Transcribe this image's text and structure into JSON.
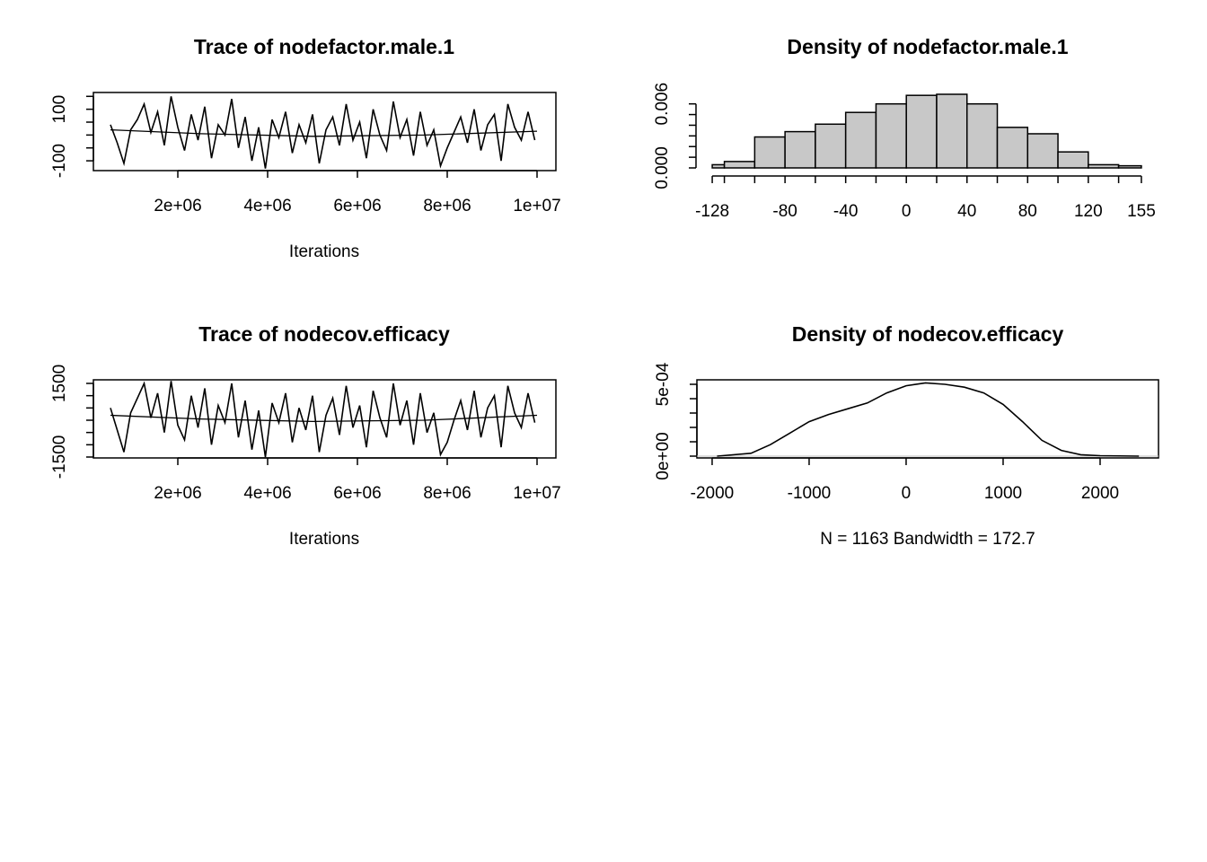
{
  "chart_data": [
    {
      "type": "line",
      "title": "Trace of nodefactor.male.1",
      "xlabel": "Iterations",
      "xlim": [
        120000,
        10420000
      ],
      "ylim": [
        -138,
        165
      ],
      "xticks": [
        {
          "value": 2000000,
          "label": "2e+06"
        },
        {
          "value": 4000000,
          "label": "4e+06"
        },
        {
          "value": 6000000,
          "label": "6e+06"
        },
        {
          "value": 8000000,
          "label": "8e+06"
        },
        {
          "value": 10000000,
          "label": "1e+07"
        }
      ],
      "yticks": [
        -100,
        {
          "value": -50,
          "label": null
        },
        {
          "value": 0,
          "label": null
        },
        {
          "value": 50,
          "label": null
        },
        100,
        {
          "value": 150,
          "label": null
        }
      ],
      "series": [
        {
          "color": "#000000",
          "x": [
            500000,
            650000,
            800000,
            950000,
            1100000,
            1250000,
            1400000,
            1550000,
            1700000,
            1850000,
            2000000,
            2150000,
            2300000,
            2450000,
            2600000,
            2750000,
            2900000,
            3050000,
            3200000,
            3350000,
            3500000,
            3650000,
            3800000,
            3950000,
            4100000,
            4250000,
            4400000,
            4550000,
            4700000,
            4850000,
            5000000,
            5150000,
            5300000,
            5450000,
            5600000,
            5750000,
            5900000,
            6050000,
            6200000,
            6350000,
            6500000,
            6650000,
            6800000,
            6950000,
            7100000,
            7250000,
            7400000,
            7550000,
            7700000,
            7850000,
            8000000,
            8150000,
            8300000,
            8450000,
            8600000,
            8750000,
            8900000,
            9050000,
            9200000,
            9350000,
            9500000,
            9650000,
            9800000,
            9950000
          ],
          "values": [
            40,
            -30,
            -110,
            20,
            60,
            120,
            10,
            90,
            -40,
            150,
            30,
            -60,
            80,
            -20,
            110,
            -90,
            40,
            0,
            140,
            -50,
            70,
            -100,
            30,
            -130,
            60,
            -10,
            90,
            -70,
            40,
            -30,
            80,
            -110,
            20,
            70,
            -40,
            120,
            -20,
            50,
            -90,
            100,
            0,
            -60,
            130,
            -10,
            60,
            -80,
            90,
            -40,
            20,
            -120,
            -50,
            10,
            70,
            -30,
            100,
            -60,
            40,
            80,
            -100,
            120,
            30,
            -20,
            90,
            -20
          ]
        },
        {
          "color": "#000000",
          "x": [
            500000,
            2500000,
            5000000,
            7500000,
            10000000
          ],
          "values": [
            20,
            5,
            -5,
            0,
            15
          ]
        }
      ]
    },
    {
      "type": "histogram",
      "title": "Density of nodefactor.male.1",
      "color": "#c8c8c8",
      "xlim": [
        -139.3,
        166.3
      ],
      "ylim": [
        0,
        0.0069
      ],
      "bins": [
        -128,
        -120,
        -100,
        -80,
        -60,
        -40,
        -20,
        0,
        20,
        40,
        60,
        80,
        100,
        120,
        140,
        155
      ],
      "values": [
        0.0003,
        0.0006,
        0.0029,
        0.0034,
        0.0041,
        0.0052,
        0.006,
        0.0068,
        0.0069,
        0.006,
        0.0038,
        0.0032,
        0.0015,
        0.0003,
        0.0002
      ],
      "xticks": [
        -128,
        {
          "value": -120,
          "label": null
        },
        {
          "value": -100,
          "label": null
        },
        -80,
        {
          "value": -60,
          "label": null
        },
        -40,
        {
          "value": -20,
          "label": null
        },
        0,
        {
          "value": 20,
          "label": null
        },
        40,
        {
          "value": 60,
          "label": null
        },
        80,
        {
          "value": 100,
          "label": null
        },
        120,
        {
          "value": 140,
          "label": null
        },
        155
      ],
      "yticks": [
        {
          "value": 0,
          "label": "0.000"
        },
        {
          "value": 0.001,
          "label": null
        },
        {
          "value": 0.002,
          "label": null
        },
        {
          "value": 0.003,
          "label": null
        },
        {
          "value": 0.004,
          "label": null
        },
        {
          "value": 0.005,
          "label": null
        },
        {
          "value": 0.006,
          "label": "0.006"
        }
      ]
    },
    {
      "type": "line",
      "title": "Trace of nodecov.efficacy",
      "xlabel": "Iterations",
      "xlim": [
        120000,
        10420000
      ],
      "ylim": [
        -1537,
        1646
      ],
      "xticks": [
        {
          "value": 2000000,
          "label": "2e+06"
        },
        {
          "value": 4000000,
          "label": "4e+06"
        },
        {
          "value": 6000000,
          "label": "6e+06"
        },
        {
          "value": 8000000,
          "label": "8e+06"
        },
        {
          "value": 10000000,
          "label": "1e+07"
        }
      ],
      "yticks": [
        -1500,
        {
          "value": -1000,
          "label": null
        },
        {
          "value": -500,
          "label": null
        },
        {
          "value": 0,
          "label": null
        },
        {
          "value": 500,
          "label": null
        },
        {
          "value": 1000,
          "label": null
        },
        1500
      ],
      "series": [
        {
          "color": "#000000",
          "x": [
            500000,
            650000,
            800000,
            950000,
            1100000,
            1250000,
            1400000,
            1550000,
            1700000,
            1850000,
            2000000,
            2150000,
            2300000,
            2450000,
            2600000,
            2750000,
            2900000,
            3050000,
            3200000,
            3350000,
            3500000,
            3650000,
            3800000,
            3950000,
            4100000,
            4250000,
            4400000,
            4550000,
            4700000,
            4850000,
            5000000,
            5150000,
            5300000,
            5450000,
            5600000,
            5750000,
            5900000,
            6050000,
            6200000,
            6350000,
            6500000,
            6650000,
            6800000,
            6950000,
            7100000,
            7250000,
            7400000,
            7550000,
            7700000,
            7850000,
            8000000,
            8150000,
            8300000,
            8450000,
            8600000,
            8750000,
            8900000,
            9050000,
            9200000,
            9350000,
            9500000,
            9650000,
            9800000,
            9950000
          ],
          "values": [
            500,
            -400,
            -1300,
            300,
            900,
            1500,
            100,
            1100,
            -500,
            1600,
            -200,
            -800,
            1000,
            -300,
            1300,
            -1000,
            600,
            -100,
            1500,
            -700,
            800,
            -1200,
            400,
            -1500,
            700,
            -100,
            1100,
            -900,
            500,
            -400,
            1000,
            -1300,
            200,
            900,
            -600,
            1400,
            -300,
            600,
            -1100,
            1200,
            100,
            -700,
            1500,
            -200,
            800,
            -1000,
            1100,
            -500,
            300,
            -1400,
            -900,
            0,
            800,
            -400,
            1200,
            -700,
            500,
            1000,
            -1100,
            1400,
            300,
            -300,
            1100,
            -100
          ]
        },
        {
          "color": "#000000",
          "x": [
            500000,
            2500000,
            5000000,
            7500000,
            10000000
          ],
          "values": [
            200,
            50,
            -50,
            0,
            200
          ]
        }
      ]
    },
    {
      "type": "line",
      "title": "Density of nodecov.efficacy",
      "xlabel": "N = 1163   Bandwidth = 172.7",
      "xlim": [
        -2157,
        2602
      ],
      "ylim": [
        -1.25e-05,
        0.00053125
      ],
      "xticks": [
        -2000,
        -1000,
        0,
        1000,
        2000
      ],
      "yticks": [
        {
          "value": 0,
          "label": "0e+00"
        },
        {
          "value": 0.0001,
          "label": null
        },
        {
          "value": 0.0002,
          "label": null
        },
        {
          "value": 0.0003,
          "label": null
        },
        {
          "value": 0.0004,
          "label": null
        },
        {
          "value": 0.0005,
          "label": "5e-04"
        }
      ],
      "series": [
        {
          "color": "#000000",
          "x": [
            -1950,
            -1600,
            -1400,
            -1200,
            -1000,
            -800,
            -600,
            -400,
            -200,
            0,
            200,
            400,
            600,
            800,
            1000,
            1200,
            1400,
            1600,
            1800,
            2000,
            2400
          ],
          "values": [
            0,
            2e-05,
            8e-05,
            0.00016,
            0.00024,
            0.00029,
            0.00033,
            0.00037,
            0.00044,
            0.00049,
            0.00051,
            0.0005,
            0.00048,
            0.00044,
            0.00036,
            0.00024,
            0.00011,
            4e-05,
            1e-05,
            3e-06,
            0
          ]
        }
      ]
    }
  ]
}
